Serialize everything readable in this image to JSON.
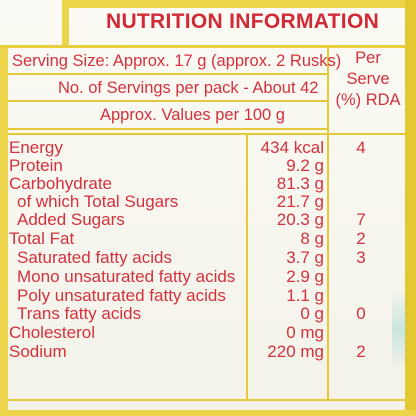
{
  "label": {
    "title": "NUTRITION INFORMATION",
    "serving_size": "Serving Size: Approx. 17 g (approx. 2 Rusks)",
    "servings_per_pack": "No. of Servings per pack - About 42",
    "values_basis": "Approx. Values per 100 g",
    "per_serve_header": [
      "Per",
      "Serve",
      "(%) RDA"
    ],
    "colors": {
      "text": "#d3313d",
      "border": "#ecd54a",
      "background": "#f8f7f0"
    },
    "rows": [
      {
        "name": "Energy",
        "value": "434 kcal",
        "rda": "4",
        "indent": false
      },
      {
        "name": "Protein",
        "value": "9.2 g",
        "rda": "",
        "indent": false
      },
      {
        "name": "Carbohydrate",
        "value": "81.3 g",
        "rda": "",
        "indent": false
      },
      {
        "name": "of which Total Sugars",
        "value": "21.7 g",
        "rda": "",
        "indent": true
      },
      {
        "name": "Added Sugars",
        "value": "20.3 g",
        "rda": "7",
        "indent": true
      },
      {
        "name": "Total Fat",
        "value": "8 g",
        "rda": "2",
        "indent": false
      },
      {
        "name": "Saturated fatty acids",
        "value": "3.7 g",
        "rda": "3",
        "indent": true
      },
      {
        "name": "Mono unsaturated fatty acids",
        "value": "2.9 g",
        "rda": "",
        "indent": true
      },
      {
        "name": "Poly unsaturated fatty acids",
        "value": "1.1 g",
        "rda": "",
        "indent": true
      },
      {
        "name": "Trans fatty acids",
        "value": "0 g",
        "rda": "0",
        "indent": true
      },
      {
        "name": "Cholesterol",
        "value": "0 mg",
        "rda": "",
        "indent": false
      },
      {
        "name": "Sodium",
        "value": "220 mg",
        "rda": "2",
        "indent": false
      }
    ]
  }
}
